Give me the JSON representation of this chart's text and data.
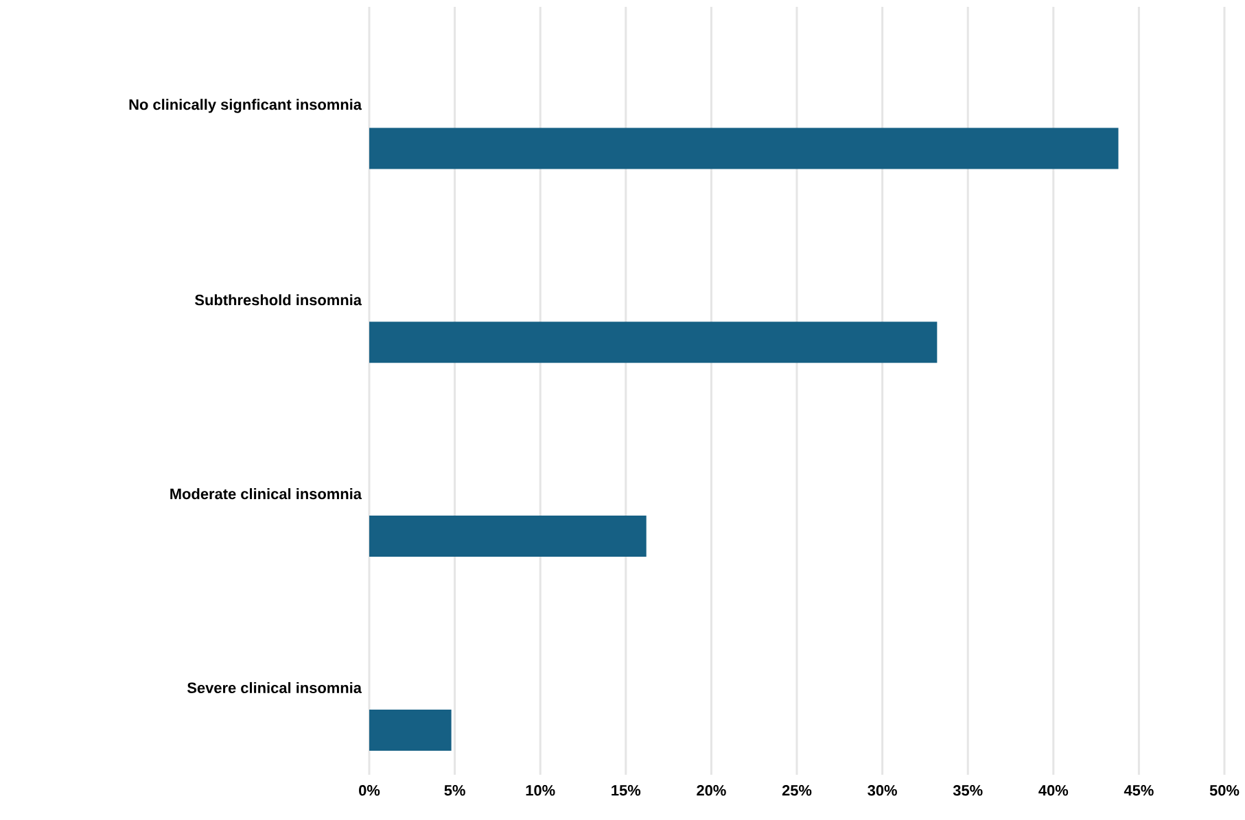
{
  "chart_data": {
    "type": "bar",
    "orientation": "horizontal",
    "categories": [
      "No clinically signficant insomnia",
      "Subthreshold insomnia",
      "Moderate clinical insomnia",
      "Severe clinical insomnia"
    ],
    "values": [
      43.8,
      33.2,
      16.2,
      4.8
    ],
    "color": "#166084",
    "xlim": [
      0,
      50
    ],
    "xticks": [
      {
        "value": 0,
        "label": "0%"
      },
      {
        "value": 5,
        "label": "5%"
      },
      {
        "value": 10,
        "label": "10%"
      },
      {
        "value": 15,
        "label": "15%"
      },
      {
        "value": 20,
        "label": "20%"
      },
      {
        "value": 25,
        "label": "25%"
      },
      {
        "value": 30,
        "label": "30%"
      },
      {
        "value": 35,
        "label": "35%"
      },
      {
        "value": 40,
        "label": "40%"
      },
      {
        "value": 45,
        "label": "45%"
      },
      {
        "value": 50,
        "label": "50%"
      }
    ],
    "grid": "x"
  }
}
